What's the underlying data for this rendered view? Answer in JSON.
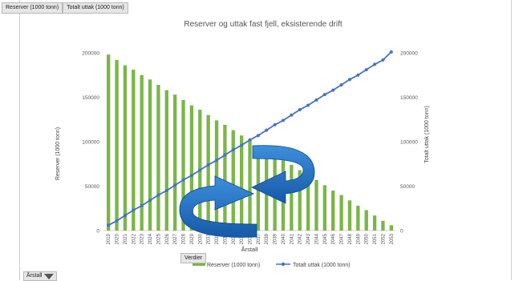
{
  "field_buttons": {
    "reserver": "Reserver (1000 tonn)",
    "totalt": "Totalt uttak (1000 tonn)",
    "vardier": "Verdier",
    "arstall": "Årstall"
  },
  "colors": {
    "bar": "#7ab648",
    "line": "#4472c4",
    "arrow": "#1f6fbf"
  },
  "chart_data": {
    "type": "bar",
    "title": "Reserver og uttak fast fjell, eksisterende drift",
    "xlabel": "Årstall",
    "ylabel": "Reserver (1000 tonn)",
    "y2label": "Totalt uttak (1000 tonn)",
    "ylim": [
      0,
      200000
    ],
    "y2lim": [
      0,
      200000
    ],
    "yticks": [
      "0",
      "50000",
      "100000",
      "150000",
      "200000"
    ],
    "y2ticks": [
      "0",
      "50000",
      "100000",
      "150000",
      "200000"
    ],
    "categories": [
      "2019",
      "2020",
      "2021",
      "2022",
      "2023",
      "2024",
      "2025",
      "2026",
      "2027",
      "2028",
      "2029",
      "2030",
      "2031",
      "2032",
      "2033",
      "2034",
      "2035",
      "2036",
      "2037",
      "2038",
      "2039",
      "2040",
      "2041",
      "2042",
      "2043",
      "2044",
      "2045",
      "2046",
      "2047",
      "2048",
      "2049",
      "2050",
      "2051",
      "2052",
      "2053"
    ],
    "series": [
      {
        "name": "Reserver (1000 tonn)",
        "type": "bar",
        "values": [
          198000,
          192000,
          186000,
          181000,
          175000,
          170000,
          164000,
          158000,
          153000,
          147000,
          141000,
          136000,
          130000,
          124000,
          119000,
          113000,
          107000,
          102000,
          96000,
          91000,
          85000,
          79000,
          74000,
          68000,
          62000,
          57000,
          51000,
          45000,
          40000,
          34000,
          28000,
          23000,
          17000,
          11000,
          6000
        ]
      },
      {
        "name": "Totalt uttak (1000 tonn)",
        "type": "line",
        "axis": "right",
        "values": [
          6000,
          11000,
          17000,
          23000,
          28000,
          34000,
          40000,
          45000,
          51000,
          57000,
          62000,
          68000,
          74000,
          79000,
          85000,
          91000,
          96000,
          102000,
          107000,
          113000,
          119000,
          124000,
          130000,
          136000,
          141000,
          147000,
          153000,
          158000,
          164000,
          170000,
          175000,
          181000,
          187000,
          192000,
          201000
        ]
      }
    ],
    "legend_position": "bottom",
    "grid": false
  }
}
